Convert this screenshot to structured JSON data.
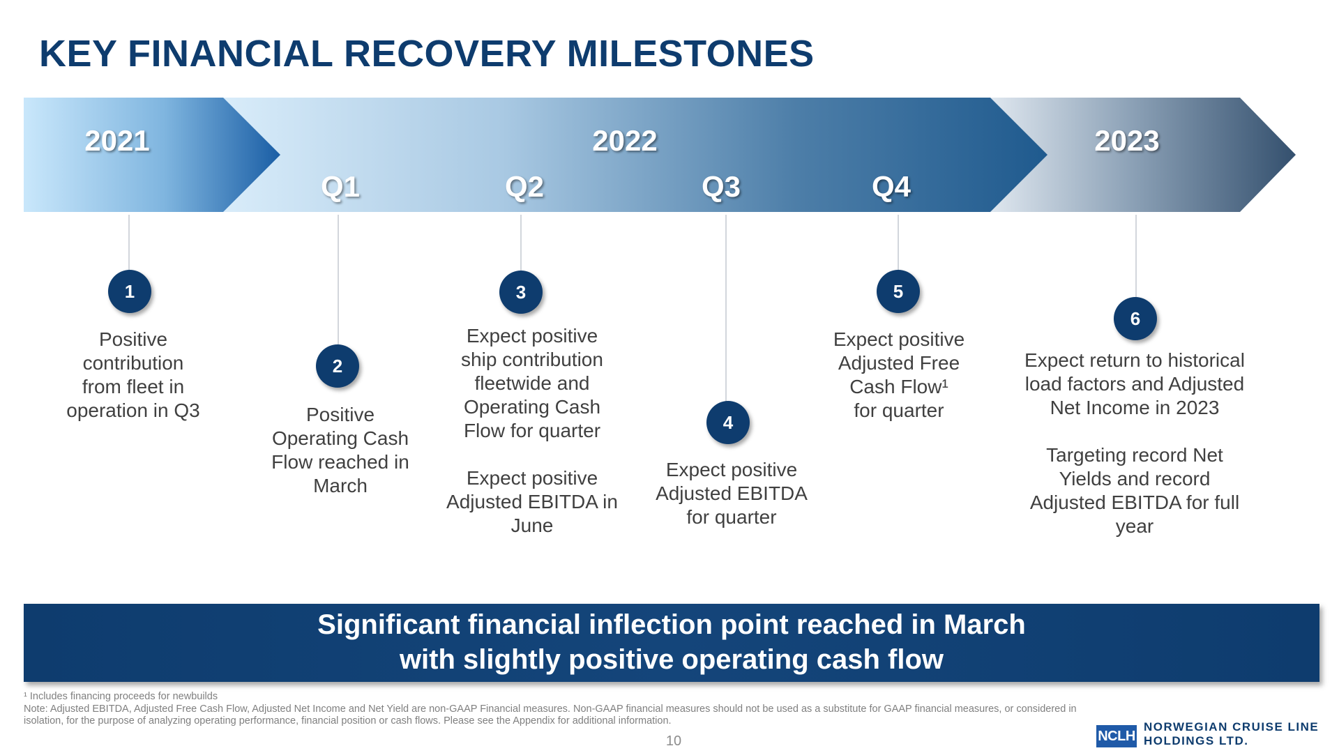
{
  "title": "KEY FINANCIAL RECOVERY MILESTONES",
  "timeline": {
    "years": [
      "2021",
      "2022",
      "2023"
    ],
    "quarters": [
      "Q1",
      "Q2",
      "Q3",
      "Q4"
    ]
  },
  "milestones": [
    {
      "number": "1",
      "text": "Positive\ncontribution\nfrom fleet in\noperation in Q3"
    },
    {
      "number": "2",
      "text": "Positive\nOperating Cash\nFlow reached in\nMarch"
    },
    {
      "number": "3",
      "text": "Expect positive\nship contribution\nfleetwide and\nOperating Cash\nFlow for quarter\n\nExpect positive\nAdjusted EBITDA in\nJune"
    },
    {
      "number": "4",
      "text": "Expect positive\nAdjusted EBITDA\nfor quarter"
    },
    {
      "number": "5",
      "text": "Expect positive\nAdjusted Free\nCash Flow¹\nfor quarter"
    },
    {
      "number": "6",
      "text": "Expect return to historical\nload factors and Adjusted\nNet Income in 2023\n\nTargeting record Net\nYields and record\nAdjusted EBITDA for full\nyear"
    }
  ],
  "callout": {
    "line1": "Significant financial inflection point reached in March",
    "line2": "with slightly positive operating cash flow"
  },
  "footnotes": {
    "note1": "¹ Includes financing proceeds for newbuilds",
    "note2_line1": "Note: Adjusted EBITDA, Adjusted Free Cash Flow, Adjusted Net Income and Net Yield are non-GAAP Financial measures. Non-GAAP financial measures should not be used as a substitute for GAAP financial measures, or considered in",
    "note2_line2": "isolation, for the purpose of analyzing operating performance, financial position or cash flows. Please see the Appendix for additional information."
  },
  "page_number": "10",
  "logo": {
    "badge": "NCLH",
    "line1": "NORWEGIAN CRUISE LINE",
    "line2": "HOLDINGS LTD."
  },
  "colors": {
    "navy": "#0e3c6e",
    "accent_blue": "#1f5aa8"
  }
}
